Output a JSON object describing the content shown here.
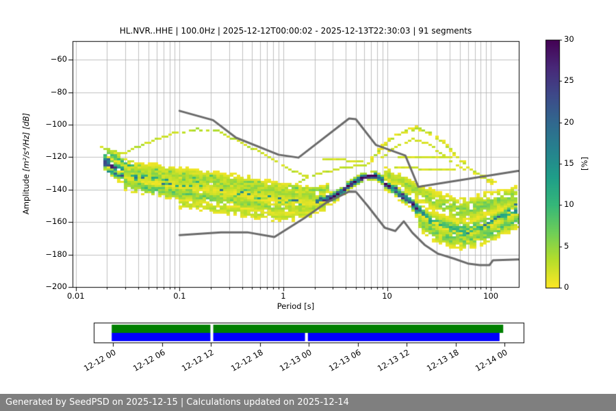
{
  "figure": {
    "footer_text": "Generated by SeedPSD on 2025-12-15 | Calculations updated on 2025-12-14",
    "footer_bg": "#7f7f7f",
    "footer_fg": "#ffffff"
  },
  "chart_data": {
    "type": "heatmap",
    "title": "HL.NVR..HHE | 100.0Hz | 2025-12-12T00:00:02 - 2025-12-13T22:30:03 | 91 segments",
    "xlabel": "Period [s]",
    "ylabel_prefix": "Amplitude ",
    "ylabel_units": "[m²/s⁴/Hz] [dB]",
    "xscale": "log",
    "xlim": [
      0.0093,
      186
    ],
    "ylim": [
      -200,
      -48.5
    ],
    "grid": true,
    "grid_color": "#b0b0b0",
    "x_ticks": {
      "values": [
        0.01,
        0.1,
        1,
        10,
        100
      ],
      "labels": [
        "0.01",
        "0.1",
        "1",
        "10",
        "100"
      ]
    },
    "y_ticks": {
      "values": [
        -60,
        -80,
        -100,
        -120,
        -140,
        -160,
        -180,
        -200
      ],
      "labels": [
        "−60",
        "−80",
        "−100",
        "−120",
        "−140",
        "−160",
        "−180",
        "−200"
      ]
    },
    "colormap": {
      "name": "viridis_r",
      "vmin": 0,
      "vmax": 30,
      "stops": [
        "#fde725",
        "#b5de2b",
        "#6ece58",
        "#35b779",
        "#1f9e89",
        "#26828e",
        "#31688e",
        "#3e4989",
        "#482878",
        "#440154"
      ]
    },
    "colorbar": {
      "ticks": [
        0,
        5,
        10,
        15,
        20,
        25,
        30
      ],
      "labels": [
        "0",
        "5",
        "10",
        "15",
        "20",
        "25",
        "30"
      ],
      "label": "[%]"
    },
    "noise_models": {
      "color": "#6b6b6b",
      "nhnm": [
        [
          0.1,
          -91.5
        ],
        [
          0.21,
          -97.2
        ],
        [
          0.35,
          -108
        ],
        [
          0.9,
          -118.5
        ],
        [
          1.4,
          -120.3
        ],
        [
          4.3,
          -96.2
        ],
        [
          5.0,
          -96.6
        ],
        [
          7.8,
          -112.5
        ],
        [
          15,
          -119
        ],
        [
          20,
          -138.3
        ],
        [
          183,
          -128.5
        ]
      ],
      "nlnm": [
        [
          0.1,
          -168
        ],
        [
          0.25,
          -166.3
        ],
        [
          0.45,
          -166.3
        ],
        [
          0.82,
          -169.2
        ],
        [
          1.6,
          -157.5
        ],
        [
          2.6,
          -148
        ],
        [
          4.3,
          -141.2
        ],
        [
          5.0,
          -141.3
        ],
        [
          6.5,
          -150
        ],
        [
          9.5,
          -163.5
        ],
        [
          12,
          -165.5
        ],
        [
          14.5,
          -159.5
        ],
        [
          17.5,
          -166.5
        ],
        [
          23,
          -174
        ],
        [
          31,
          -179.5
        ],
        [
          44,
          -182.5
        ],
        [
          60,
          -185.5
        ],
        [
          78,
          -186.5
        ],
        [
          97,
          -186.5
        ],
        [
          105,
          -183.5
        ],
        [
          183,
          -183
        ]
      ]
    },
    "density_strands": [
      {
        "name": "core",
        "dropout": 0.18,
        "pts": [
          [
            0.019,
            -122,
            26,
            5
          ],
          [
            0.024,
            -127,
            22,
            5
          ],
          [
            0.035,
            -131,
            15,
            6
          ],
          [
            0.06,
            -133.5,
            13,
            6
          ],
          [
            0.1,
            -135.5,
            12,
            6
          ],
          [
            0.2,
            -138.5,
            11,
            6
          ],
          [
            0.4,
            -141.5,
            11,
            6
          ],
          [
            0.7,
            -143.5,
            12,
            5
          ],
          [
            1.2,
            -145.5,
            14,
            4.5
          ],
          [
            2.0,
            -147,
            20,
            3.5
          ],
          [
            2.8,
            -145,
            25,
            3
          ],
          [
            3.8,
            -139.5,
            30,
            2.5
          ],
          [
            5.0,
            -134,
            33,
            2.5
          ],
          [
            6.5,
            -131,
            33,
            2.5
          ],
          [
            8.0,
            -131.5,
            30,
            2.5
          ],
          [
            10,
            -136,
            26,
            3
          ],
          [
            13,
            -141.5,
            28,
            3
          ],
          [
            16,
            -146,
            27,
            3
          ],
          [
            19,
            -150.5,
            20,
            4
          ],
          [
            23,
            -156,
            13,
            5
          ],
          [
            30,
            -161,
            10,
            6.5
          ],
          [
            42,
            -164.5,
            9,
            7
          ],
          [
            60,
            -165.5,
            9,
            7
          ],
          [
            80,
            -163,
            9,
            7
          ],
          [
            110,
            -158.5,
            10,
            6
          ],
          [
            150,
            -154,
            11,
            5
          ],
          [
            183,
            -152,
            12,
            5
          ]
        ]
      },
      {
        "name": "core-teal",
        "dropout": 0.3,
        "pts": [
          [
            0.02,
            -128,
            18,
            2
          ],
          [
            0.03,
            -132,
            16,
            2
          ],
          [
            0.05,
            -135,
            14,
            1.5
          ],
          [
            0.08,
            -136.5,
            12,
            1.5
          ],
          [
            0.15,
            -137.5,
            12,
            1.5
          ],
          [
            0.3,
            -140.5,
            13,
            1.5
          ],
          [
            0.6,
            -143,
            13,
            1.5
          ],
          [
            1.0,
            -145,
            14,
            1.5
          ],
          [
            1.6,
            -146.5,
            15,
            1.5
          ]
        ]
      },
      {
        "name": "band-upper",
        "dropout": 0.3,
        "pts": [
          [
            0.02,
            -117,
            9,
            2.5
          ],
          [
            0.03,
            -124,
            10,
            3
          ],
          [
            0.05,
            -127.5,
            10,
            3
          ],
          [
            0.09,
            -129.5,
            10,
            3
          ],
          [
            0.18,
            -132,
            9,
            3
          ],
          [
            0.35,
            -134.5,
            8,
            3
          ],
          [
            0.6,
            -136.5,
            7,
            3
          ],
          [
            1.0,
            -138.5,
            6,
            3
          ],
          [
            1.7,
            -139.5,
            5,
            2.5
          ],
          [
            2.6,
            -139,
            6,
            2.5
          ]
        ]
      },
      {
        "name": "band-mid-faint",
        "dropout": 0.45,
        "pts": [
          [
            0.03,
            -128,
            4,
            6
          ],
          [
            0.08,
            -131,
            4,
            7
          ],
          [
            0.2,
            -134,
            4,
            7
          ],
          [
            0.5,
            -138,
            4,
            7
          ],
          [
            1.0,
            -141,
            4,
            6
          ],
          [
            2,
            -144,
            4,
            5
          ]
        ]
      },
      {
        "name": "band-lower",
        "dropout": 0.35,
        "pts": [
          [
            0.03,
            -136,
            7,
            4
          ],
          [
            0.06,
            -139.5,
            7,
            4
          ],
          [
            0.12,
            -142.5,
            6,
            4.5
          ],
          [
            0.25,
            -145.5,
            5,
            5
          ],
          [
            0.5,
            -148.5,
            5,
            5
          ],
          [
            0.9,
            -151,
            4,
            4
          ],
          [
            1.5,
            -151.5,
            4,
            3.5
          ],
          [
            2.5,
            -150,
            4,
            3
          ]
        ]
      },
      {
        "name": "band-bottom-fringe",
        "dropout": 0.5,
        "pts": [
          [
            0.1,
            -148,
            3,
            3
          ],
          [
            0.3,
            -152,
            3,
            3.5
          ],
          [
            0.6,
            -155,
            3,
            3.5
          ],
          [
            1.0,
            -156,
            2.5,
            3
          ],
          [
            1.8,
            -154.5,
            2.5,
            2.5
          ]
        ]
      },
      {
        "name": "left-arc",
        "dropout": 0.4,
        "pts": [
          [
            0.018,
            -113.5,
            2.5,
            1.2
          ],
          [
            0.029,
            -117,
            2.5,
            1.2
          ],
          [
            0.05,
            -110.5,
            2.5,
            1.2
          ],
          [
            0.09,
            -104.5,
            2.8,
            1.2
          ],
          [
            0.15,
            -102.3,
            3,
            1.2
          ],
          [
            0.22,
            -102.5,
            3,
            1.2
          ],
          [
            0.32,
            -107.5,
            2.5,
            1.2
          ],
          [
            0.45,
            -112,
            2.5,
            1.2
          ],
          [
            0.7,
            -118.5,
            2.5,
            1.2
          ],
          [
            1.1,
            -126,
            2.5,
            1.2
          ],
          [
            1.8,
            -132,
            2.5,
            1.2
          ]
        ]
      },
      {
        "name": "mid-upper-strand",
        "dropout": 0.3,
        "pts": [
          [
            1.4,
            -134,
            2.8,
            1.2
          ],
          [
            2.4,
            -128.5,
            2.8,
            1.2
          ],
          [
            4,
            -125.5,
            2.8,
            1.2
          ],
          [
            6.5,
            -123.5,
            2.8,
            1.2
          ]
        ]
      },
      {
        "name": "right-arc",
        "dropout": 0.45,
        "pts": [
          [
            6.5,
            -123.5,
            2.8,
            1.5
          ],
          [
            8,
            -115.5,
            2.8,
            1.5
          ],
          [
            11,
            -107.5,
            2.8,
            1.5
          ],
          [
            15,
            -103,
            3,
            1.5
          ],
          [
            20,
            -102,
            3,
            1.5
          ],
          [
            27,
            -105.5,
            2.8,
            1.5
          ],
          [
            38,
            -113,
            2.5,
            1.5
          ],
          [
            55,
            -124,
            2.5,
            1.5
          ],
          [
            80,
            -131,
            2.5,
            1.5
          ],
          [
            110,
            -136,
            2.5,
            1.5
          ]
        ]
      },
      {
        "name": "right-arc-inner",
        "dropout": 0.55,
        "pts": [
          [
            9,
            -119,
            2,
            1.2
          ],
          [
            13,
            -112,
            2,
            1.2
          ],
          [
            18,
            -108.5,
            2,
            1.2
          ],
          [
            25,
            -111,
            2,
            1.2
          ],
          [
            34,
            -117.5,
            2,
            1.2
          ],
          [
            46,
            -124,
            2,
            1.2
          ],
          [
            60,
            -129,
            2,
            1.2
          ]
        ]
      },
      {
        "name": "scatter-h1",
        "dropout": 0.55,
        "pts": [
          [
            13,
            -119,
            2,
            0.9
          ],
          [
            50,
            -119.5,
            2,
            0.9
          ]
        ]
      },
      {
        "name": "scatter-h2",
        "dropout": 0.6,
        "pts": [
          [
            12,
            -126,
            2,
            0.9
          ],
          [
            45,
            -127,
            2,
            0.9
          ]
        ]
      },
      {
        "name": "scatter-h3",
        "dropout": 0.5,
        "pts": [
          [
            2.5,
            -120.5,
            2,
            1
          ],
          [
            6,
            -122,
            2,
            1
          ]
        ]
      },
      {
        "name": "fan-upper",
        "dropout": 0.3,
        "pts": [
          [
            10,
            -130,
            4,
            4
          ],
          [
            14,
            -134,
            4,
            4.5
          ],
          [
            18,
            -138,
            4.5,
            5
          ],
          [
            25,
            -144,
            5,
            6
          ],
          [
            35,
            -149,
            5,
            7.5
          ],
          [
            50,
            -152,
            5.5,
            8
          ],
          [
            70,
            -151,
            5.5,
            8
          ],
          [
            100,
            -148,
            5.5,
            7
          ],
          [
            140,
            -145,
            5,
            6
          ],
          [
            183,
            -143,
            5,
            6
          ]
        ]
      },
      {
        "name": "fan-lower",
        "dropout": 0.3,
        "pts": [
          [
            20,
            -160,
            5,
            5
          ],
          [
            28,
            -166,
            6,
            6
          ],
          [
            40,
            -170,
            6,
            5
          ],
          [
            55,
            -171,
            6,
            5
          ],
          [
            75,
            -169,
            6,
            5
          ],
          [
            100,
            -166,
            6.5,
            5
          ],
          [
            140,
            -161,
            6.5,
            5
          ],
          [
            183,
            -158,
            7,
            5
          ]
        ]
      },
      {
        "name": "right-dark-accents",
        "dropout": 0.35,
        "pts": [
          [
            55,
            -167,
            15,
            1.5
          ],
          [
            70,
            -164,
            14,
            1.5
          ],
          [
            90,
            -161,
            15,
            1.5
          ],
          [
            115,
            -157,
            16,
            1.5
          ],
          [
            145,
            -153.5,
            15,
            1.5
          ],
          [
            170,
            -148,
            19,
            1.2
          ],
          [
            183,
            -151,
            17,
            1.5
          ]
        ]
      }
    ]
  },
  "timeline": {
    "hours_total": 48,
    "tick_hours": [
      0,
      6,
      12,
      18,
      24,
      30,
      36,
      42,
      48
    ],
    "tick_labels": [
      "12-12 00",
      "12-12 06",
      "12-12 12",
      "12-12 18",
      "12-13 00",
      "12-13 06",
      "12-13 12",
      "12-13 18",
      "12-14 00"
    ],
    "green": {
      "color": "#007f00",
      "segments_hours": [
        [
          -0.15,
          11.95
        ],
        [
          12.3,
          47.85
        ]
      ]
    },
    "blue": {
      "color": "#0000ff",
      "segments_hours": [
        [
          -0.15,
          11.95
        ],
        [
          12.3,
          23.55
        ],
        [
          23.9,
          47.4
        ]
      ]
    }
  }
}
